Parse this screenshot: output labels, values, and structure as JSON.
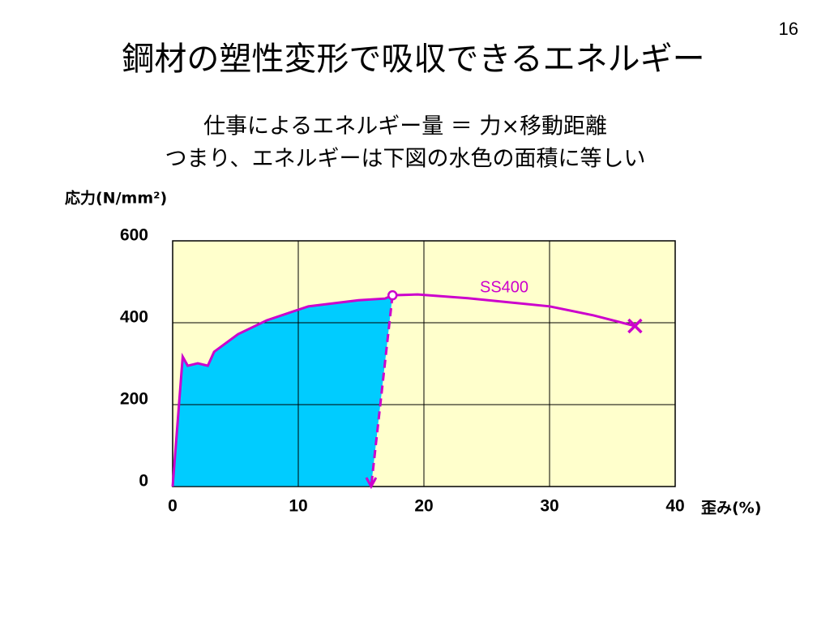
{
  "slide_number": 16,
  "title": "鋼材の塑性変形で吸収できるエネルギー",
  "subtitle": [
    "仕事によるエネルギー量 ＝ 力×移動距離",
    "つまり、エネルギーは下図の水色の面積に等しい"
  ],
  "chart_data": {
    "type": "line",
    "y_label": "応力(N/mm²)",
    "x_label": "歪み(%)",
    "xlim": [
      0,
      40
    ],
    "xticks": [
      0,
      10,
      20,
      30,
      40
    ],
    "ylim": [
      0,
      600
    ],
    "yticks": [
      0,
      200,
      400,
      600
    ],
    "grid": true,
    "background": "#ffffcc",
    "area_color": "#00ccff",
    "series": [
      {
        "name": "SS400",
        "color": "#cc00cc",
        "x": [
          0,
          0.8,
          1.2,
          2,
          2.8,
          3.3,
          5.2,
          7.5,
          10.8,
          14.8,
          16.9,
          17.5,
          19.5,
          23.5,
          30,
          33.5,
          36.8
        ],
        "values": [
          0,
          317,
          295,
          301,
          295,
          329,
          372,
          406,
          440,
          455,
          459,
          467,
          469,
          460,
          440,
          418,
          392
        ]
      },
      {
        "color": "#cc00cc",
        "x": [
          17.5,
          15.8
        ],
        "values": [
          467,
          0
        ]
      }
    ]
  }
}
